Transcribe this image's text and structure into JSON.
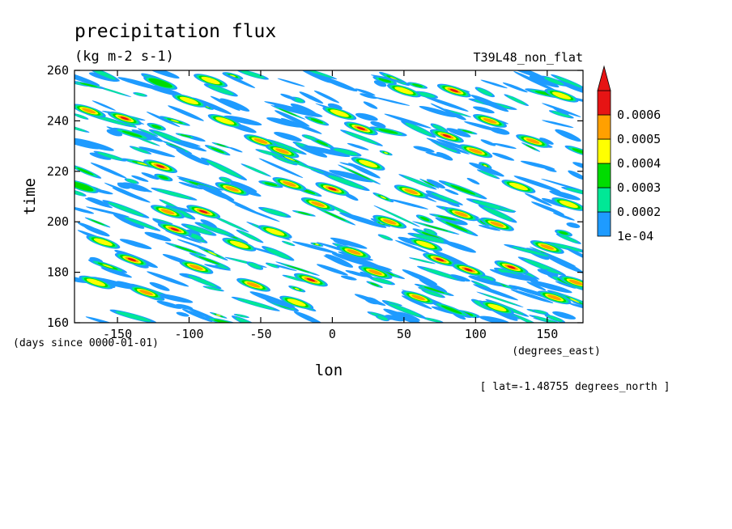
{
  "chart_data": {
    "type": "heatmap",
    "title": "precipitation flux",
    "units": "(kg m-2 s-1)",
    "run_label": "T39L48_non_flat",
    "xlabel": "lon",
    "x_units": "(degrees_east)",
    "ylabel": "time",
    "y_units": "(days since 0000-01-01)",
    "slice_note": "[ lat=-1.48755 degrees_north ]",
    "xlim": [
      -180,
      175
    ],
    "ylim": [
      160,
      260
    ],
    "x_ticks": [
      -150,
      -100,
      -50,
      0,
      50,
      100,
      150
    ],
    "y_ticks": [
      160,
      180,
      200,
      220,
      240,
      260
    ],
    "x_tick_labels": [
      "-150",
      "-100",
      "-50",
      "0",
      "50",
      "100",
      "150"
    ],
    "y_tick_labels": [
      "160",
      "180",
      "200",
      "220",
      "240",
      "260"
    ],
    "colorbar": {
      "levels": [
        0.0001,
        0.0002,
        0.0003,
        0.0004,
        0.0005,
        0.0006
      ],
      "level_labels": [
        "1e-04",
        "0.0002",
        "0.0003",
        "0.0004",
        "0.0005",
        "0.0006"
      ],
      "colors": [
        "#1e9bff",
        "#00e896",
        "#00dc00",
        "#ffff00",
        "#ffa000",
        "#e61414"
      ],
      "extend": "max"
    },
    "features": [
      {
        "x": -170,
        "y": 244,
        "level": 4
      },
      {
        "x": -160,
        "y": 192,
        "level": 3
      },
      {
        "x": -145,
        "y": 241,
        "level": 5
      },
      {
        "x": -140,
        "y": 185,
        "level": 5
      },
      {
        "x": -130,
        "y": 172,
        "level": 4
      },
      {
        "x": -120,
        "y": 222,
        "level": 5
      },
      {
        "x": -115,
        "y": 204,
        "level": 4
      },
      {
        "x": -110,
        "y": 197,
        "level": 5
      },
      {
        "x": -100,
        "y": 248,
        "level": 3
      },
      {
        "x": -95,
        "y": 182,
        "level": 4
      },
      {
        "x": -90,
        "y": 204,
        "level": 5
      },
      {
        "x": -85,
        "y": 256,
        "level": 3
      },
      {
        "x": -75,
        "y": 240,
        "level": 3
      },
      {
        "x": -70,
        "y": 213,
        "level": 4
      },
      {
        "x": -65,
        "y": 191,
        "level": 3
      },
      {
        "x": -55,
        "y": 175,
        "level": 4
      },
      {
        "x": -50,
        "y": 232,
        "level": 4
      },
      {
        "x": -40,
        "y": 196,
        "level": 3
      },
      {
        "x": -35,
        "y": 228,
        "level": 4
      },
      {
        "x": -30,
        "y": 215,
        "level": 4
      },
      {
        "x": -25,
        "y": 168,
        "level": 3
      },
      {
        "x": -15,
        "y": 177,
        "level": 5
      },
      {
        "x": -10,
        "y": 207,
        "level": 4
      },
      {
        "x": 0,
        "y": 213,
        "level": 5
      },
      {
        "x": 5,
        "y": 243,
        "level": 3
      },
      {
        "x": 15,
        "y": 188,
        "level": 4
      },
      {
        "x": 20,
        "y": 237,
        "level": 5
      },
      {
        "x": 25,
        "y": 223,
        "level": 3
      },
      {
        "x": 30,
        "y": 180,
        "level": 4
      },
      {
        "x": 40,
        "y": 200,
        "level": 4
      },
      {
        "x": 50,
        "y": 252,
        "level": 3
      },
      {
        "x": 55,
        "y": 212,
        "level": 4
      },
      {
        "x": 65,
        "y": 191,
        "level": 3
      },
      {
        "x": 75,
        "y": 185,
        "level": 5
      },
      {
        "x": 80,
        "y": 234,
        "level": 5
      },
      {
        "x": 85,
        "y": 252,
        "level": 5
      },
      {
        "x": 90,
        "y": 203,
        "level": 4
      },
      {
        "x": 95,
        "y": 181,
        "level": 5
      },
      {
        "x": 100,
        "y": 228,
        "level": 4
      },
      {
        "x": 110,
        "y": 240,
        "level": 4
      },
      {
        "x": 115,
        "y": 199,
        "level": 4
      },
      {
        "x": 125,
        "y": 182,
        "level": 5
      },
      {
        "x": 130,
        "y": 214,
        "level": 3
      },
      {
        "x": 140,
        "y": 232,
        "level": 4
      },
      {
        "x": 150,
        "y": 190,
        "level": 4
      },
      {
        "x": 155,
        "y": 170,
        "level": 4
      },
      {
        "x": 160,
        "y": 250,
        "level": 3
      },
      {
        "x": 165,
        "y": 207,
        "level": 3
      },
      {
        "x": 170,
        "y": 176,
        "level": 4
      },
      {
        "x": -175,
        "y": 214,
        "level": 2
      },
      {
        "x": -165,
        "y": 176,
        "level": 3
      },
      {
        "x": 60,
        "y": 170,
        "level": 4
      },
      {
        "x": -120,
        "y": 255,
        "level": 2
      },
      {
        "x": 115,
        "y": 166,
        "level": 3
      }
    ]
  }
}
